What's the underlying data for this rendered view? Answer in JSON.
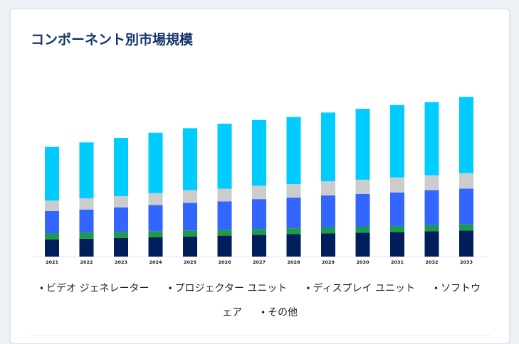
{
  "page": {
    "title": "コンポーネント別市場規模"
  },
  "legend": {
    "row1": [
      "ビデオ ジェネレーター",
      "プロジェクター ユニット",
      "ディスプレイ ユニット",
      "ソフトウ"
    ],
    "row2": [
      "ェア",
      "その他"
    ]
  },
  "colors": {
    "title": "#13336b",
    "series": [
      "#011e5c",
      "#1b9c48",
      "#3366ff",
      "#cccccc",
      "#00ccff"
    ]
  },
  "chart_data": {
    "type": "bar",
    "stacked": true,
    "categories": [
      "2021",
      "2022",
      "2023",
      "2024",
      "2025",
      "2026",
      "2027",
      "2028",
      "2029",
      "2030",
      "2031",
      "2032",
      "2033"
    ],
    "series": [
      {
        "name": "",
        "values": [
          23,
          24,
          25,
          26,
          27,
          28,
          29,
          30,
          31,
          32,
          33,
          34,
          35
        ]
      },
      {
        "name": "",
        "values": [
          8,
          8,
          8,
          8,
          8,
          8,
          8,
          8,
          8,
          8,
          8,
          8,
          8
        ]
      },
      {
        "name": "",
        "values": [
          30,
          31,
          33,
          35,
          37,
          38,
          40,
          41,
          43,
          44,
          45,
          47,
          48
        ]
      },
      {
        "name": "",
        "values": [
          14,
          15,
          15,
          16,
          17,
          17,
          18,
          18,
          19,
          19,
          20,
          20,
          21
        ]
      },
      {
        "name": "",
        "values": [
          72,
          75,
          78,
          81,
          83,
          87,
          88,
          90,
          92,
          95,
          97,
          98,
          102
        ]
      }
    ],
    "ylim": [
      0,
      240
    ],
    "grid": false,
    "legend_position": "bottom"
  }
}
